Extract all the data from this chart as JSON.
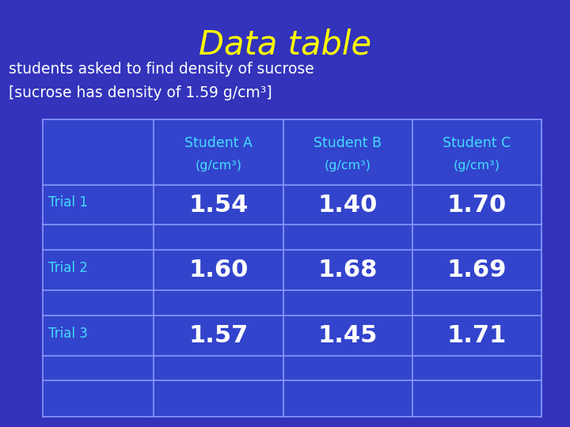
{
  "title": "Data table",
  "title_color": "#FFFF00",
  "subtitle_line1": "students asked to find density of sucrose",
  "subtitle_line2": "[sucrose has density of 1.59 g/cm³]",
  "subtitle_color": "#FFFFFF",
  "background_color": "#3333BB",
  "table_bg_color": "#3344CC",
  "header_color": "#44DDFF",
  "row_label_color": "#44DDFF",
  "data_color": "#FFFFFF",
  "grid_color": "#8899FF",
  "col_headers_line1": [
    "Student A",
    "Student B",
    "Student C"
  ],
  "col_headers_line2": [
    "(g/cm³)",
    "(g/cm³)",
    "(g/cm³)"
  ],
  "row_labels": [
    "Trial 1",
    "Trial 2",
    "Trial 3"
  ],
  "data": [
    [
      "1.54",
      "1.40",
      "1.70"
    ],
    [
      "1.60",
      "1.68",
      "1.69"
    ],
    [
      "1.57",
      "1.45",
      "1.71"
    ]
  ]
}
